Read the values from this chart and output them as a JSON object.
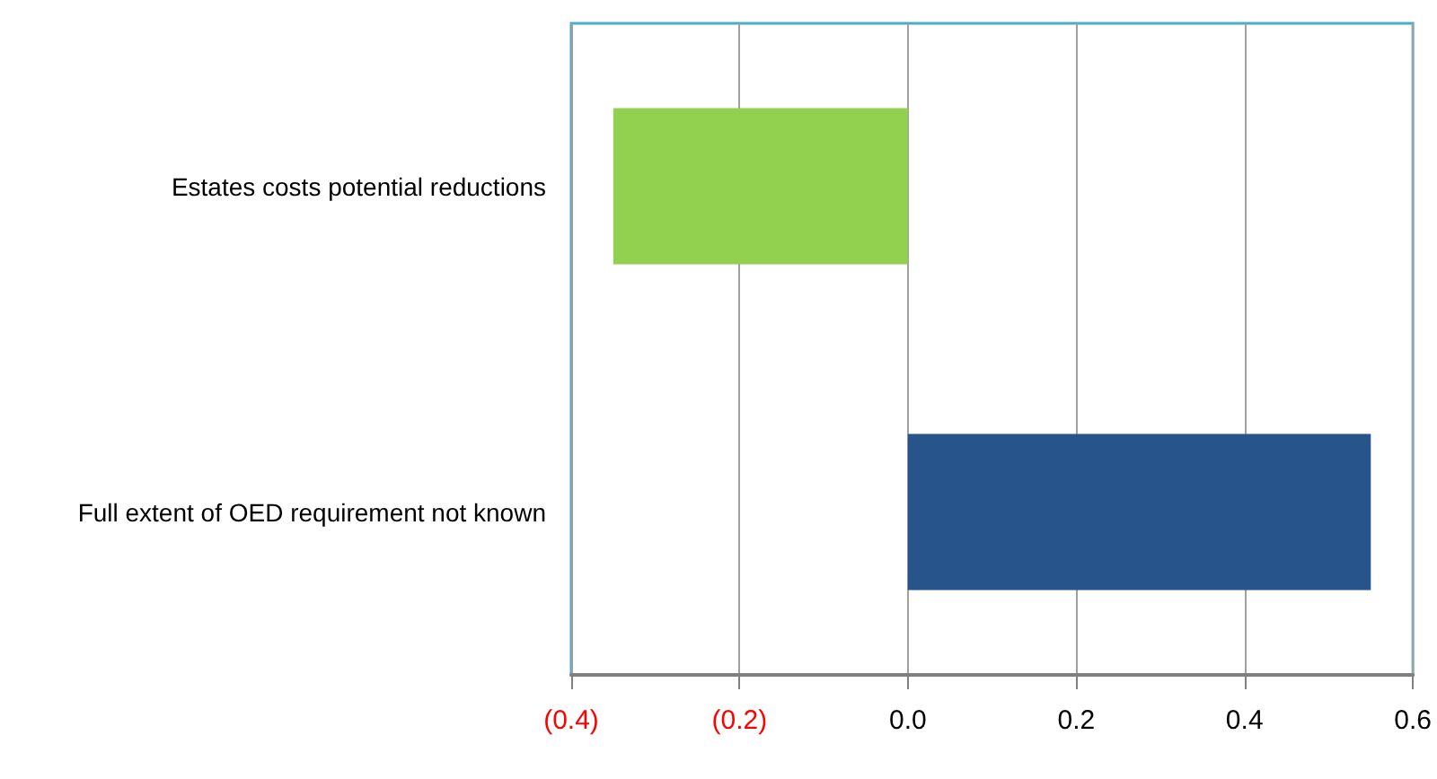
{
  "chart_data": {
    "type": "bar",
    "orientation": "horizontal",
    "categories": [
      "Estates costs potential reductions",
      "Full extent of OED requirement not known"
    ],
    "values": [
      -0.35,
      0.55
    ],
    "colors": [
      "#92d050",
      "#27548a"
    ],
    "xlim": [
      -0.4,
      0.6
    ],
    "xticks": [
      {
        "value": -0.4,
        "label": "(0.4)"
      },
      {
        "value": -0.2,
        "label": "(0.2)"
      },
      {
        "value": 0,
        "label": "0.0"
      },
      {
        "value": 0.2,
        "label": "0.2"
      },
      {
        "value": 0.4,
        "label": "0.4"
      },
      {
        "value": 0.6,
        "label": "0.6"
      }
    ],
    "grid": "x"
  }
}
